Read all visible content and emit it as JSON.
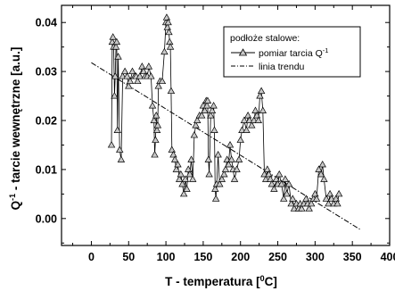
{
  "chart_data": {
    "type": "line",
    "xlabel": {
      "main": "T -  temperatura [",
      "sup": "0",
      "tail": "C]"
    },
    "ylabel": {
      "main": "Q",
      "sup": "-1",
      "tail": " - tarcie wewnętrzne  [a.u.]"
    },
    "xlim": [
      -40,
      400
    ],
    "ylim": [
      -0.0055,
      0.0435
    ],
    "x_ticks": [
      0,
      50,
      100,
      150,
      200,
      250,
      300,
      350,
      400
    ],
    "x_tick_labels": [
      "0",
      "50",
      "100",
      "150",
      "200",
      "250",
      "300",
      "350",
      "400"
    ],
    "y_ticks": [
      0.0,
      0.01,
      0.02,
      0.03,
      0.04
    ],
    "y_tick_labels": [
      "0.00",
      "0.01",
      "0.02",
      "0.03",
      "0.04"
    ],
    "grid": false,
    "legend": {
      "placement": "top-right",
      "title": "podłoże stalowe:",
      "items": [
        {
          "label_main": "pomiar tarcia Q",
          "label_sup": "-1",
          "style": "line-triangle"
        },
        {
          "label_main": "linia trendu",
          "style": "dash-dot"
        }
      ]
    },
    "series": [
      {
        "name": "pomiar tarcia Q-1",
        "marker": "triangle",
        "x": [
          27,
          28,
          29,
          30,
          31,
          32,
          33,
          34,
          35,
          36,
          38,
          40,
          42,
          45,
          48,
          50,
          52,
          55,
          58,
          60,
          62,
          65,
          68,
          70,
          72,
          75,
          77,
          80,
          82,
          84,
          85,
          86,
          87,
          88,
          89,
          90,
          92,
          95,
          98,
          100,
          101,
          102,
          103,
          104,
          105,
          106,
          107,
          108,
          110,
          112,
          114,
          116,
          118,
          120,
          122,
          124,
          126,
          128,
          130,
          132,
          134,
          136,
          138,
          140,
          142,
          145,
          148,
          150,
          152,
          154,
          155,
          156,
          157,
          158,
          160,
          162,
          164,
          165,
          166,
          167,
          168,
          170,
          172,
          175,
          178,
          180,
          182,
          184,
          186,
          188,
          190,
          192,
          195,
          198,
          200,
          202,
          205,
          208,
          210,
          212,
          215,
          218,
          220,
          222,
          224,
          226,
          228,
          230,
          232,
          234,
          236,
          238,
          240,
          242,
          245,
          248,
          250,
          252,
          255,
          258,
          260,
          262,
          265,
          268,
          270,
          272,
          275,
          278,
          280,
          282,
          285,
          288,
          290,
          292,
          295,
          298,
          300,
          302,
          305,
          308,
          310,
          312,
          315,
          318,
          320,
          322,
          325,
          328,
          330,
          332
        ],
        "y": [
          0.015,
          0.036,
          0.037,
          0.035,
          0.025,
          0.029,
          0.035,
          0.036,
          0.018,
          0.033,
          0.014,
          0.012,
          0.029,
          0.03,
          0.029,
          0.027,
          0.028,
          0.03,
          0.029,
          0.029,
          0.028,
          0.029,
          0.031,
          0.03,
          0.029,
          0.029,
          0.031,
          0.029,
          0.023,
          0.02,
          0.013,
          0.016,
          0.021,
          0.018,
          0.019,
          0.027,
          0.028,
          0.028,
          0.034,
          0.04,
          0.041,
          0.039,
          0.04,
          0.038,
          0.036,
          0.035,
          0.026,
          0.014,
          0.013,
          0.012,
          0.01,
          0.011,
          0.008,
          0.009,
          0.007,
          0.005,
          0.008,
          0.006,
          0.01,
          0.009,
          0.012,
          0.008,
          0.017,
          0.019,
          0.02,
          0.021,
          0.021,
          0.023,
          0.022,
          0.024,
          0.023,
          0.024,
          0.012,
          0.009,
          0.021,
          0.022,
          0.023,
          0.018,
          0.006,
          0.004,
          0.007,
          0.013,
          0.007,
          0.008,
          0.009,
          0.01,
          0.012,
          0.011,
          0.015,
          0.012,
          0.01,
          0.008,
          0.01,
          0.012,
          0.016,
          0.018,
          0.02,
          0.018,
          0.021,
          0.02,
          0.019,
          0.02,
          0.022,
          0.021,
          0.02,
          0.025,
          0.026,
          0.022,
          0.009,
          0.008,
          0.01,
          0.009,
          0.008,
          0.007,
          0.006,
          0.008,
          0.007,
          0.009,
          0.007,
          0.004,
          0.008,
          0.005,
          0.007,
          0.003,
          0.004,
          0.002,
          0.003,
          0.002,
          0.003,
          0.002,
          0.003,
          0.004,
          0.003,
          0.002,
          0.003,
          0.004,
          0.005,
          0.004,
          0.01,
          0.009,
          0.011,
          0.008,
          0.004,
          0.003,
          0.005,
          0.004,
          0.003,
          0.004,
          0.003,
          0.005
        ]
      },
      {
        "name": "linia trendu",
        "style": "dash-dot",
        "x": [
          0,
          360
        ],
        "y": [
          0.0318,
          -0.0022
        ]
      }
    ]
  }
}
